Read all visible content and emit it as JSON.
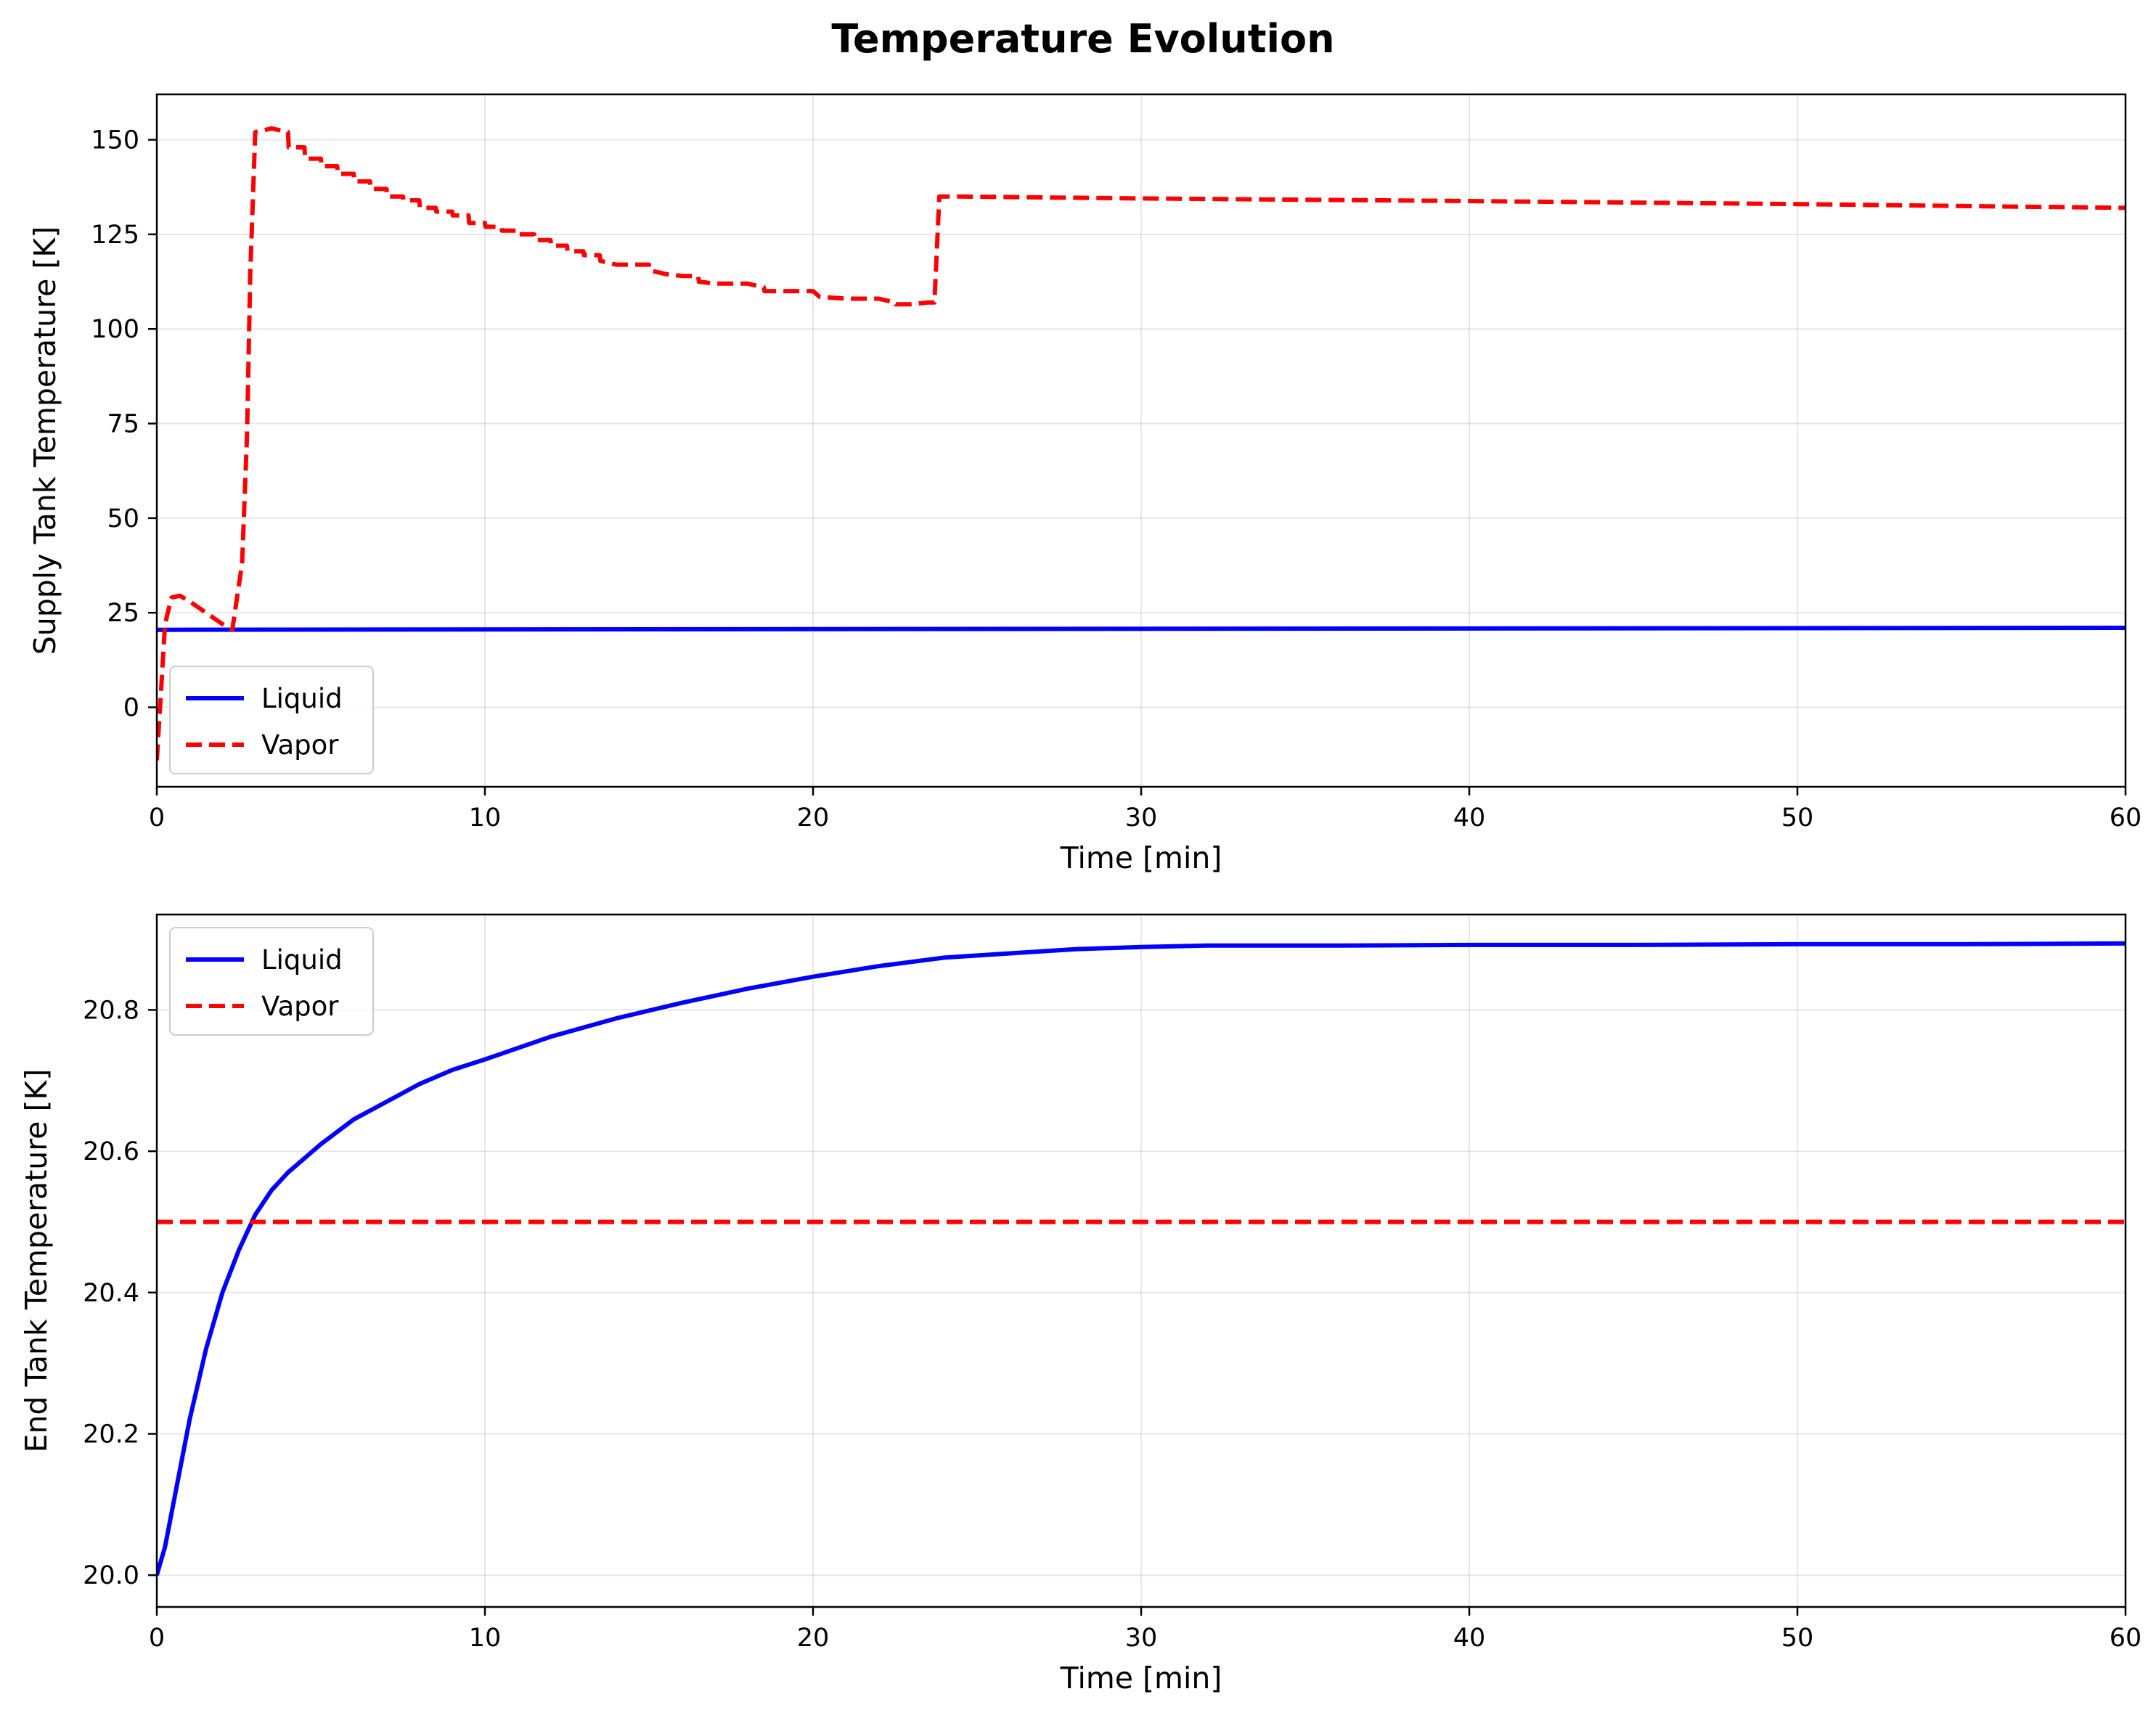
{
  "figure": {
    "title": "Temperature Evolution"
  },
  "chart_data": [
    {
      "type": "line",
      "xlabel": "Time [min]",
      "ylabel": "Supply Tank Temperature [K]",
      "xlim": [
        0,
        60
      ],
      "ylim": [
        -21,
        162
      ],
      "xticks": [
        0,
        10,
        20,
        30,
        40,
        50,
        60
      ],
      "yticks": [
        0,
        25,
        50,
        75,
        100,
        125,
        150
      ],
      "grid": true,
      "legend": {
        "position": "lower-left"
      },
      "series": [
        {
          "name": "Liquid",
          "color": "#0000ff",
          "style": "solid",
          "x": [
            0,
            0.2,
            60
          ],
          "y": [
            20.5,
            20.5,
            21
          ]
        },
        {
          "name": "Vapor",
          "color": "#ff0000",
          "style": "dashed",
          "x": [
            0,
            0.1,
            0.25,
            0.45,
            0.7,
            1.0,
            1.5,
            2.0,
            2.3,
            2.6,
            2.75,
            2.85,
            3.0,
            3.5,
            4.0,
            4.02,
            4.5,
            4.52,
            5.0,
            5.02,
            5.5,
            5.52,
            6.0,
            6.02,
            6.5,
            6.52,
            7.0,
            7.02,
            7.5,
            7.52,
            8.0,
            8.02,
            8.5,
            8.52,
            9.0,
            9.02,
            9.5,
            9.52,
            10.0,
            10.02,
            10.5,
            10.52,
            11.0,
            11.02,
            11.5,
            11.52,
            12.0,
            12.02,
            12.5,
            12.52,
            13.0,
            13.02,
            13.5,
            13.52,
            14.0,
            14.5,
            15.0,
            15.02,
            15.5,
            16.0,
            16.5,
            16.52,
            17.0,
            17.5,
            18.0,
            18.5,
            18.52,
            19.0,
            19.5,
            20.0,
            20.2,
            20.22,
            21.0,
            21.5,
            22.0,
            22.5,
            22.52,
            23.0,
            23.5,
            23.7,
            23.85,
            24.5,
            30,
            40,
            50,
            60
          ],
          "y": [
            -14,
            0,
            22,
            29,
            29.5,
            28,
            25,
            22,
            20.5,
            38,
            72,
            115,
            152,
            153,
            152,
            148,
            148,
            145,
            145,
            143,
            143,
            141,
            141,
            139,
            139,
            137,
            137,
            135,
            135,
            134,
            134,
            132,
            132,
            131,
            131,
            130,
            130,
            128,
            128,
            127,
            127,
            126,
            126,
            125,
            125,
            123.5,
            123.5,
            122,
            122,
            120.5,
            120.5,
            119.5,
            119.5,
            118,
            117,
            117,
            117,
            115.5,
            114.5,
            114,
            114,
            112.5,
            112,
            112,
            112,
            111,
            110,
            110,
            110,
            110,
            108.5,
            108.5,
            108,
            108,
            108,
            107,
            106.5,
            106.5,
            107,
            107,
            135,
            135,
            134.5,
            133.8,
            133,
            132
          ]
        }
      ]
    },
    {
      "type": "line",
      "xlabel": "Time [min]",
      "ylabel": "End Tank Temperature [K]",
      "xlim": [
        0,
        60
      ],
      "ylim": [
        19.955,
        20.935
      ],
      "xticks": [
        0,
        10,
        20,
        30,
        40,
        50,
        60
      ],
      "yticks": [
        20.0,
        20.2,
        20.4,
        20.6,
        20.8
      ],
      "grid": true,
      "legend": {
        "position": "upper-left"
      },
      "series": [
        {
          "name": "Liquid",
          "color": "#0000ff",
          "style": "solid",
          "x": [
            0,
            0.25,
            0.5,
            0.75,
            1.0,
            1.25,
            1.5,
            2.0,
            2.5,
            3.0,
            3.5,
            4.0,
            5.0,
            6.0,
            7.0,
            8.0,
            9.0,
            10.0,
            12.0,
            14.0,
            16.0,
            18.0,
            20.0,
            22.0,
            24.0,
            26.0,
            28.0,
            30.0,
            32.0,
            36.0,
            40.0,
            45.0,
            50.0,
            55.0,
            60.0
          ],
          "y": [
            20.0,
            20.04,
            20.1,
            20.16,
            20.22,
            20.27,
            20.32,
            20.4,
            20.46,
            20.51,
            20.545,
            20.57,
            20.61,
            20.645,
            20.67,
            20.695,
            20.715,
            20.73,
            20.762,
            20.788,
            20.81,
            20.83,
            20.847,
            20.862,
            20.874,
            20.88,
            20.886,
            20.889,
            20.891,
            20.891,
            20.892,
            20.892,
            20.893,
            20.893,
            20.894
          ]
        },
        {
          "name": "Vapor",
          "color": "#ff0000",
          "style": "dashed",
          "x": [
            0,
            60
          ],
          "y": [
            20.5,
            20.5
          ]
        }
      ]
    }
  ]
}
